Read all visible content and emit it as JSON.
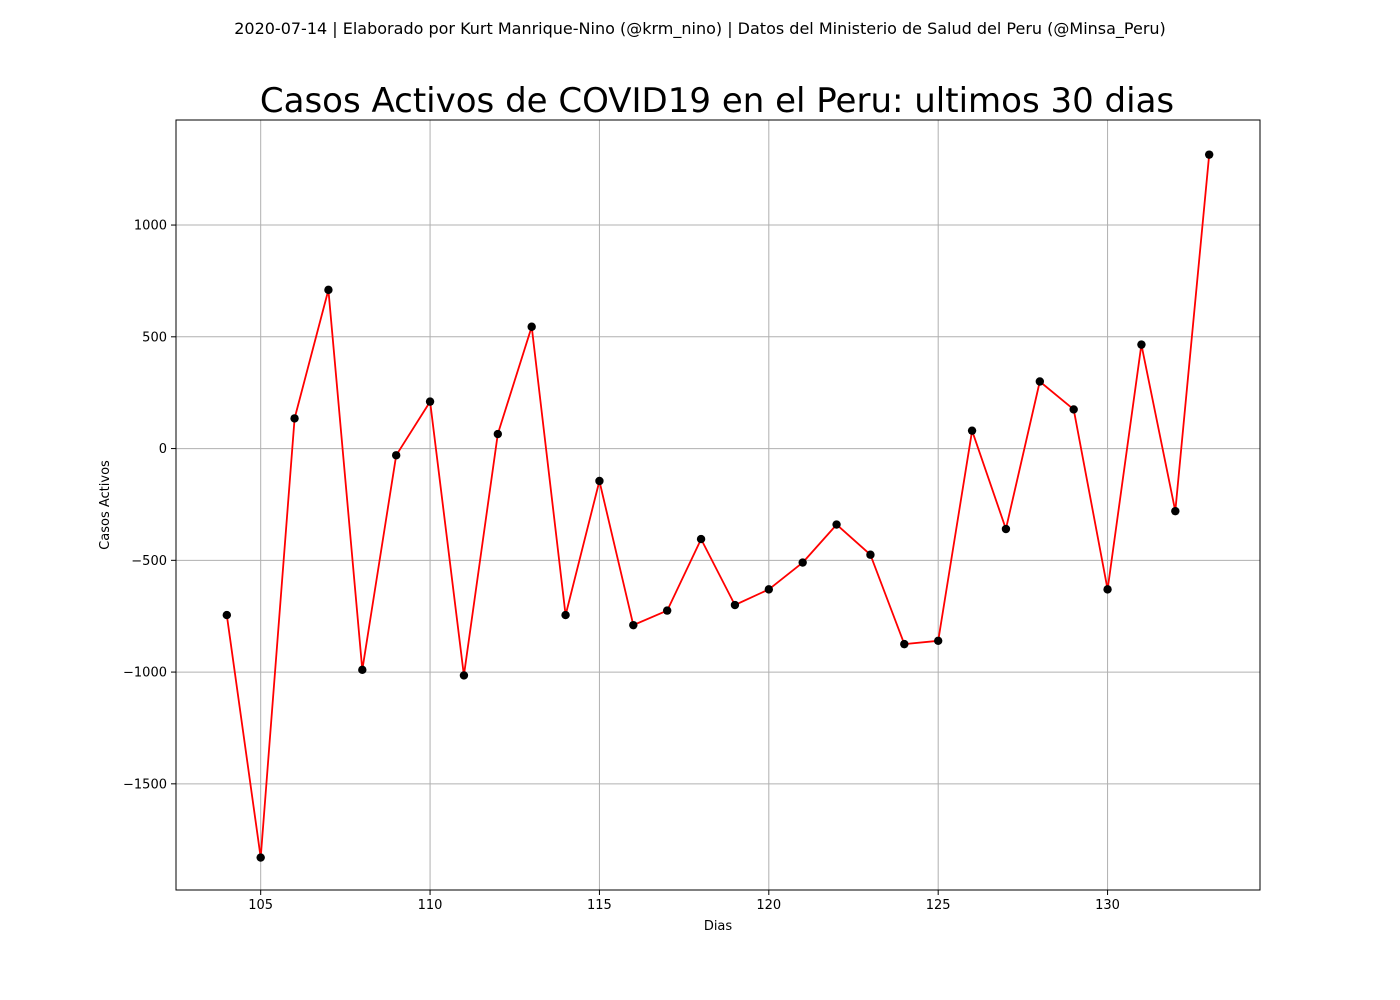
{
  "suptitle": "2020-07-14 | Elaborado por Kurt Manrique-Nino (@krm_nino) | Datos del Ministerio de Salud del Peru (@Minsa_Peru)",
  "chart_data": {
    "type": "line",
    "title": "Casos Activos de COVID19 en el Peru: ultimos 30 dias",
    "xlabel": "Dias",
    "ylabel": "Casos Activos",
    "xlim": [
      102.5,
      134.5
    ],
    "ylim": [
      -1975,
      1470
    ],
    "xticks": [
      105,
      110,
      115,
      120,
      125,
      130
    ],
    "yticks": [
      -1500,
      -1000,
      -500,
      0,
      500,
      1000
    ],
    "ytick_labels": [
      "−1500",
      "−1000",
      "−500",
      "0",
      "500",
      "1000"
    ],
    "grid": true,
    "line_color": "#ff0000",
    "marker_color": "#000000",
    "series": [
      {
        "x": [
          104,
          105,
          106,
          107,
          108,
          109,
          110,
          111,
          112,
          113,
          114,
          115,
          116,
          117,
          118,
          119,
          120,
          121,
          122,
          123,
          124,
          125,
          126,
          127,
          128,
          129,
          130,
          131,
          132,
          133
        ],
        "values": [
          -745,
          -1830,
          135,
          710,
          -990,
          -30,
          210,
          -1015,
          65,
          545,
          -745,
          -145,
          -790,
          -725,
          -405,
          -700,
          -630,
          -510,
          -340,
          -475,
          -875,
          -860,
          80,
          -360,
          300,
          175,
          -630,
          465,
          -280,
          1315
        ]
      }
    ]
  }
}
